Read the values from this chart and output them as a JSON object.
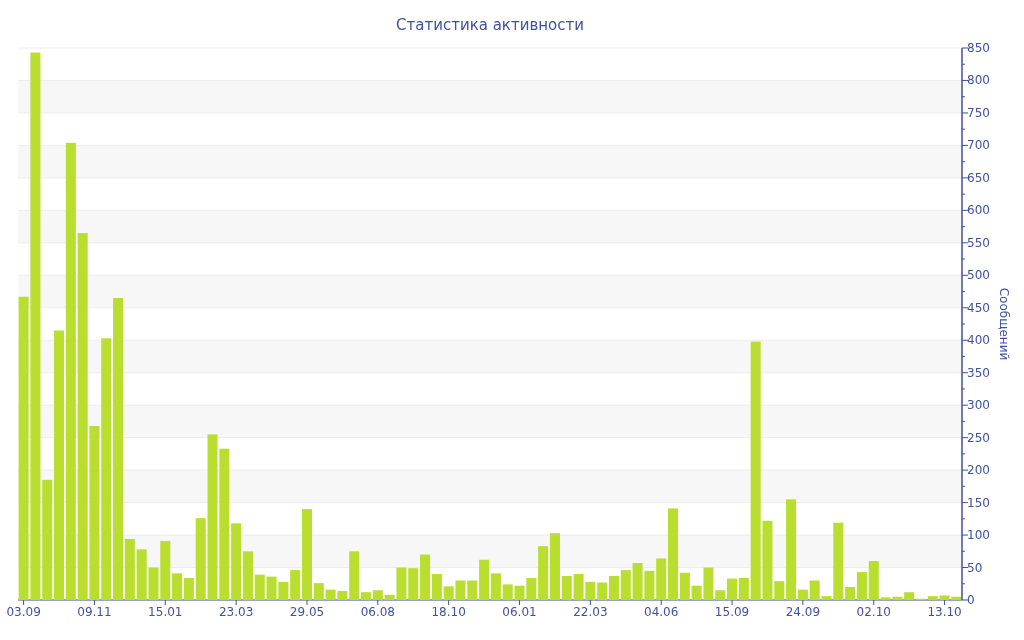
{
  "chart_data": {
    "type": "bar",
    "title": "Статистика активности",
    "ylabel": "Сообщений",
    "categories": [
      "03.09",
      null,
      null,
      null,
      null,
      null,
      "09.11",
      null,
      null,
      null,
      null,
      null,
      "15.01",
      null,
      null,
      null,
      null,
      null,
      "23.03",
      null,
      null,
      null,
      null,
      null,
      "29.05",
      null,
      null,
      null,
      null,
      null,
      "06.08",
      null,
      null,
      null,
      null,
      null,
      "18.10",
      null,
      null,
      null,
      null,
      null,
      "06.01",
      null,
      null,
      null,
      null,
      null,
      "22.03",
      null,
      null,
      null,
      null,
      null,
      "04.06",
      null,
      null,
      null,
      null,
      null,
      "15.09",
      null,
      null,
      null,
      null,
      null,
      "24.09",
      null,
      null,
      null,
      null,
      null,
      "02.10",
      null,
      null,
      null,
      null,
      null,
      "13.10",
      null
    ],
    "values": [
      467,
      843,
      185,
      415,
      704,
      565,
      268,
      403,
      465,
      94,
      78,
      50,
      91,
      41,
      34,
      126,
      255,
      233,
      118,
      75,
      39,
      36,
      28,
      46,
      140,
      26,
      16,
      14,
      75,
      12,
      15,
      8,
      50,
      49,
      70,
      40,
      21,
      30,
      30,
      62,
      41,
      24,
      22,
      34,
      83,
      103,
      37,
      40,
      28,
      27,
      37,
      46,
      57,
      45,
      64,
      141,
      42,
      22,
      50,
      15,
      33,
      34,
      398,
      122,
      29,
      155,
      16,
      30,
      6,
      119,
      20,
      43,
      60,
      4,
      5,
      12,
      2,
      6,
      7,
      5
    ],
    "color": "#bade2f",
    "ylim": [
      0,
      850
    ],
    "yticks": [
      0,
      50,
      100,
      150,
      200,
      250,
      300,
      350,
      400,
      450,
      500,
      550,
      600,
      650,
      700,
      750,
      800,
      850
    ],
    "grid": "y"
  }
}
